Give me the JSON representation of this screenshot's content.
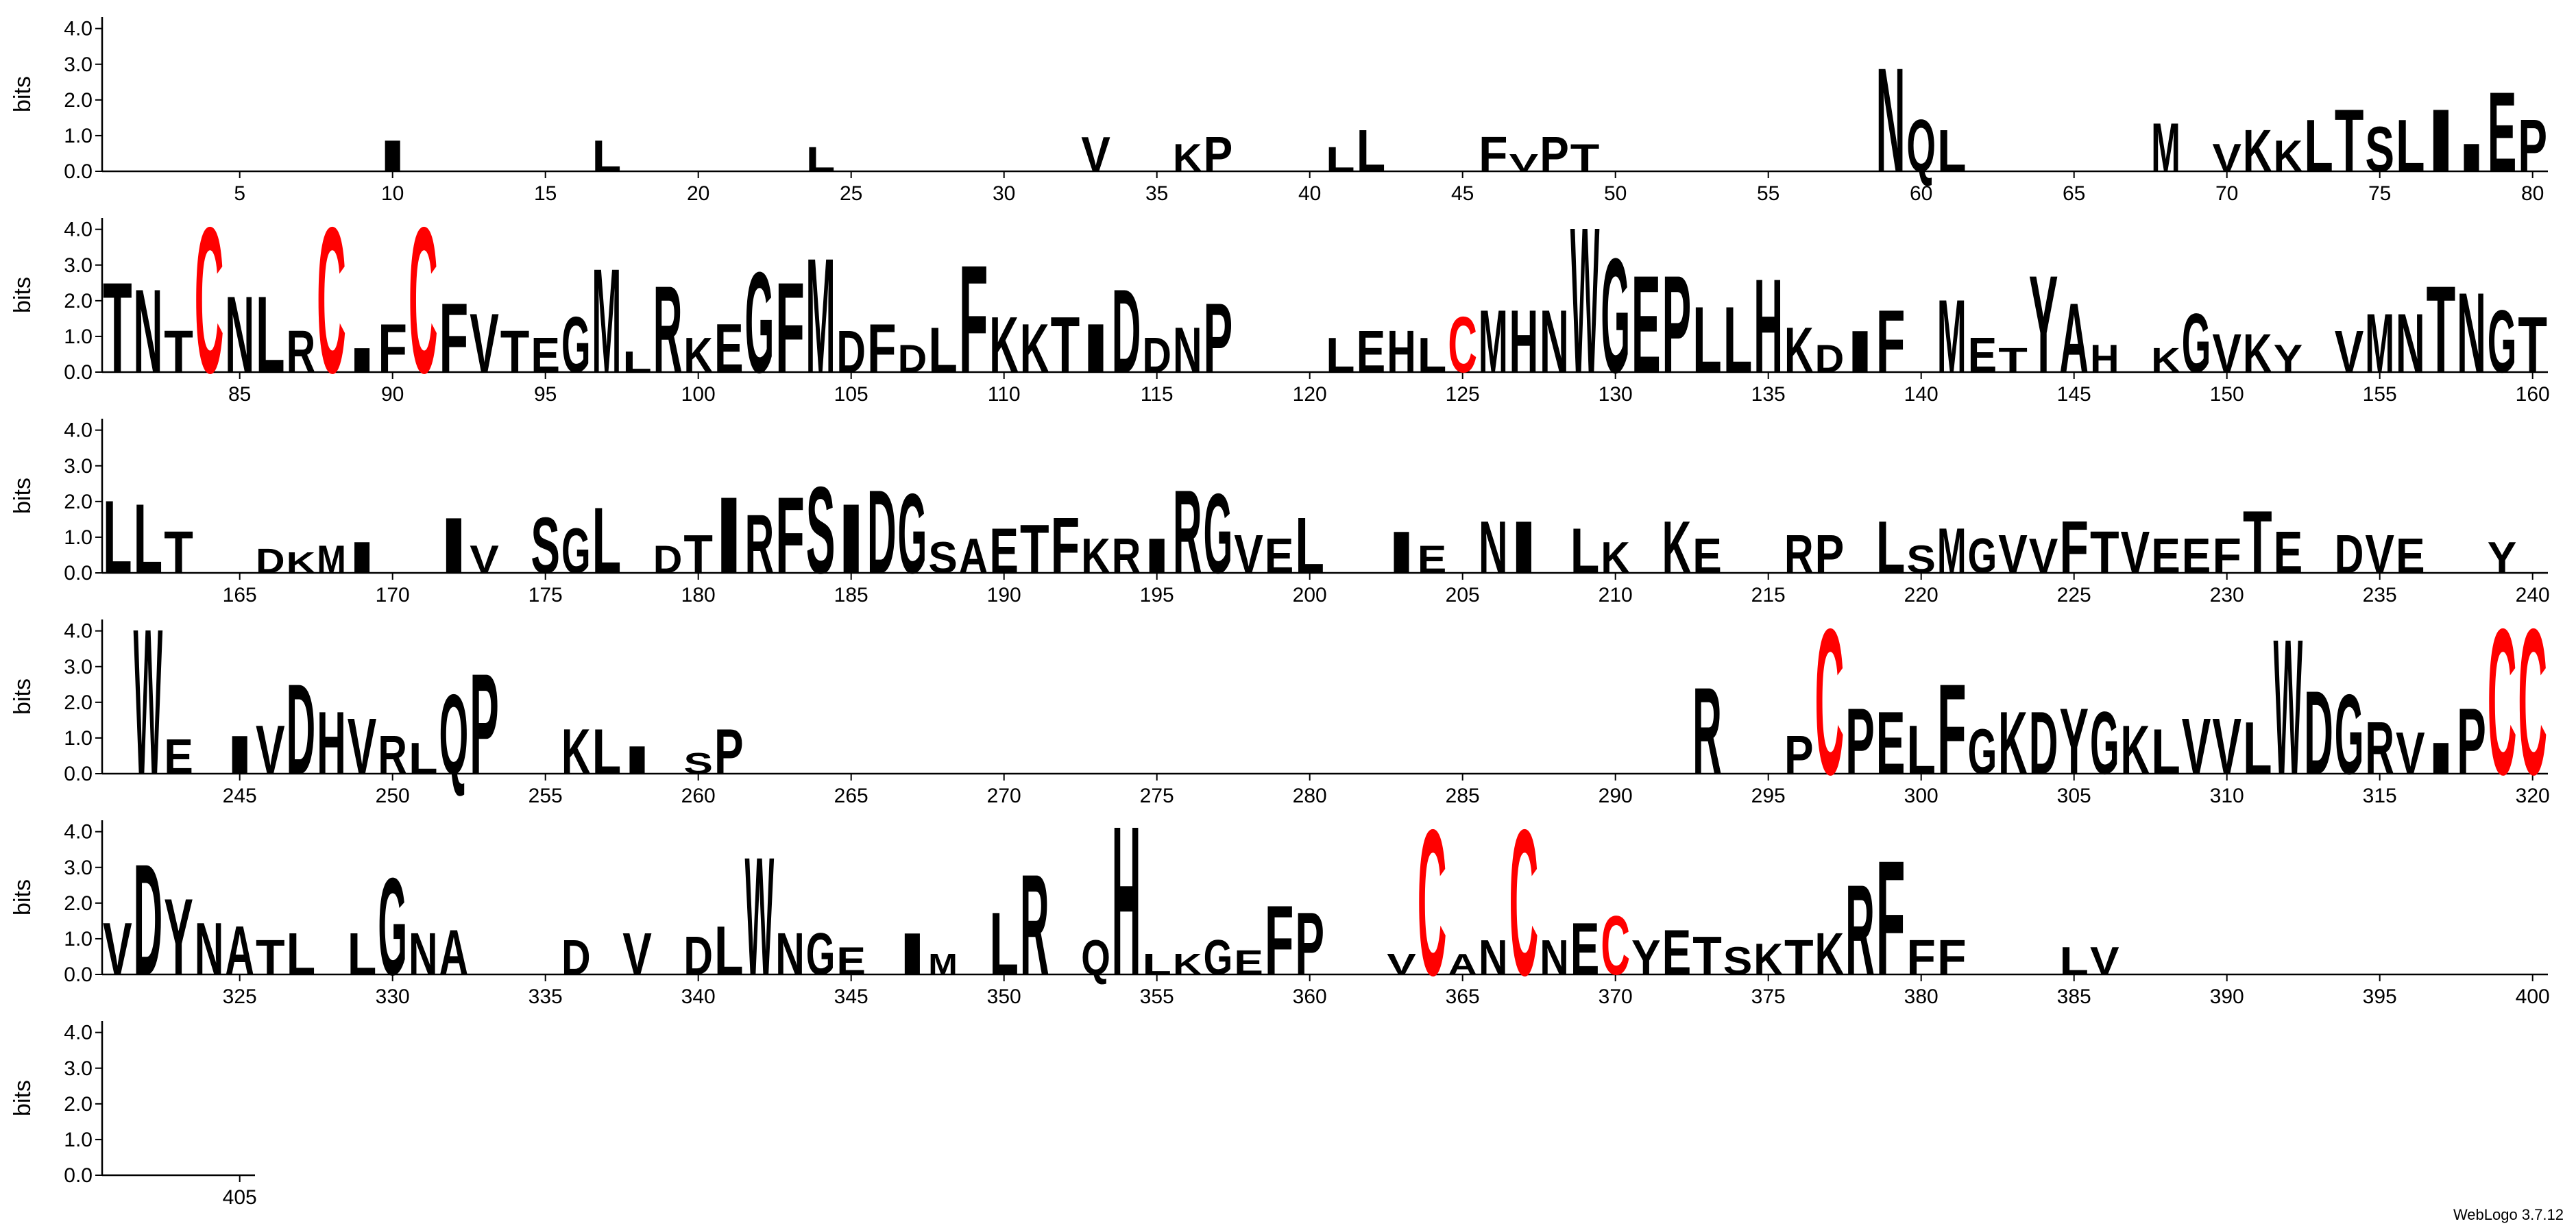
{
  "footer": "WebLogo 3.7.12",
  "chart_data": [
    {
      "type": "logo",
      "ylabel": "bits",
      "xlim": [
        0.5,
        80.5
      ],
      "xticks": [
        5,
        10,
        15,
        20,
        25,
        30,
        35,
        40,
        45,
        50,
        55,
        60,
        65,
        70,
        75,
        80
      ],
      "ylim": [
        0,
        4.32
      ],
      "yticks": [
        {
          "value": 0,
          "label": "0.0"
        },
        {
          "value": 1,
          "label": "1.0"
        },
        {
          "value": 2,
          "label": "2.0"
        },
        {
          "value": 3,
          "label": "3.0"
        },
        {
          "value": 4,
          "label": "4.0"
        }
      ],
      "color": "#000000",
      "highlight_letter": "C",
      "highlight_color": "#ff0000",
      "x": [
        10,
        17,
        24,
        33,
        36,
        37,
        41,
        42,
        46,
        47,
        48,
        49,
        59,
        60,
        61,
        68,
        70,
        71,
        72,
        73,
        74,
        75,
        76,
        77,
        78,
        79,
        80
      ],
      "letters": [
        "I",
        "L",
        "L",
        "V",
        "K",
        "P",
        "L",
        "L",
        "F",
        "V",
        "P",
        "T",
        "N",
        "Q",
        "L",
        "M",
        "V",
        "K",
        "K",
        "L",
        "T",
        "S",
        "L",
        "I",
        "I",
        "E",
        "P"
      ],
      "values": [
        0.9,
        0.9,
        0.7,
        1.0,
        0.8,
        1.0,
        0.7,
        1.2,
        1.0,
        0.5,
        1.0,
        0.8,
        3.0,
        1.5,
        1.2,
        1.4,
        0.8,
        1.2,
        0.9,
        1.5,
        1.8,
        1.3,
        1.5,
        1.8,
        0.8,
        2.3,
        1.5
      ]
    },
    {
      "type": "logo",
      "ylabel": "bits",
      "xlim": [
        80.5,
        160.5
      ],
      "xticks": [
        85,
        90,
        95,
        100,
        105,
        110,
        115,
        120,
        125,
        130,
        135,
        140,
        145,
        150,
        155,
        160
      ],
      "ylim": [
        0,
        4.32
      ],
      "yticks": [
        {
          "value": 0,
          "label": "0.0"
        },
        {
          "value": 1,
          "label": "1.0"
        },
        {
          "value": 2,
          "label": "2.0"
        },
        {
          "value": 3,
          "label": "3.0"
        },
        {
          "value": 4,
          "label": "4.0"
        }
      ],
      "color": "#000000",
      "highlight_letter": "C",
      "highlight_color": "#ff0000",
      "x": [
        81,
        82,
        83,
        84,
        85,
        86,
        87,
        88,
        89,
        90,
        91,
        92,
        93,
        94,
        95,
        96,
        97,
        98,
        99,
        100,
        101,
        102,
        103,
        104,
        105,
        106,
        107,
        108,
        109,
        110,
        111,
        112,
        113,
        114,
        115,
        116,
        117,
        121,
        122,
        123,
        124,
        125,
        126,
        127,
        128,
        129,
        130,
        131,
        132,
        133,
        134,
        135,
        136,
        137,
        138,
        139,
        141,
        142,
        143,
        144,
        145,
        146,
        148,
        149,
        150,
        151,
        152,
        154,
        155,
        156,
        157,
        158,
        159,
        160
      ],
      "letters": [
        "T",
        "N",
        "T",
        "C",
        "N",
        "L",
        "R",
        "C",
        "I",
        "F",
        "C",
        "F",
        "V",
        "T",
        "E",
        "G",
        "M",
        "L",
        "R",
        "K",
        "E",
        "G",
        "F",
        "M",
        "D",
        "F",
        "D",
        "L",
        "F",
        "K",
        "K",
        "T",
        "I",
        "D",
        "D",
        "N",
        "P",
        "L",
        "E",
        "H",
        "L",
        "C",
        "M",
        "H",
        "N",
        "W",
        "G",
        "E",
        "P",
        "L",
        "L",
        "H",
        "K",
        "D",
        "I",
        "F",
        "M",
        "E",
        "T",
        "Y",
        "A",
        "H",
        "K",
        "G",
        "V",
        "K",
        "Y",
        "V",
        "M",
        "N",
        "T",
        "N",
        "G",
        "T"
      ],
      "values": [
        2.6,
        2.4,
        1.2,
        4.2,
        2.2,
        2.2,
        1.2,
        4.2,
        0.7,
        1.4,
        4.2,
        2.0,
        1.7,
        1.2,
        1.0,
        1.6,
        3.0,
        0.6,
        2.5,
        1.0,
        1.4,
        2.9,
        2.6,
        3.3,
        1.2,
        1.4,
        0.8,
        1.3,
        3.1,
        1.6,
        1.4,
        1.6,
        1.4,
        2.4,
        1.0,
        1.3,
        2.0,
        1.0,
        1.2,
        1.2,
        1.0,
        1.6,
        1.8,
        1.8,
        1.8,
        4.2,
        3.3,
        2.8,
        2.8,
        1.9,
        1.9,
        2.7,
        1.3,
        0.8,
        1.2,
        1.8,
        2.1,
        1.0,
        0.7,
        2.8,
        2.0,
        0.8,
        0.7,
        1.7,
        1.1,
        1.1,
        0.8,
        1.2,
        1.7,
        1.7,
        2.5,
        2.3,
        1.8,
        1.6
      ]
    },
    {
      "type": "logo",
      "ylabel": "bits",
      "xlim": [
        160.5,
        240.5
      ],
      "xticks": [
        165,
        170,
        175,
        180,
        185,
        190,
        195,
        200,
        205,
        210,
        215,
        220,
        225,
        230,
        235,
        240
      ],
      "ylim": [
        0,
        4.32
      ],
      "yticks": [
        {
          "value": 0,
          "label": "0.0"
        },
        {
          "value": 1,
          "label": "1.0"
        },
        {
          "value": 2,
          "label": "2.0"
        },
        {
          "value": 3,
          "label": "3.0"
        },
        {
          "value": 4,
          "label": "4.0"
        }
      ],
      "color": "#000000",
      "highlight_letter": "C",
      "highlight_color": "#ff0000",
      "x": [
        161,
        162,
        163,
        166,
        167,
        168,
        169,
        172,
        173,
        175,
        176,
        177,
        179,
        180,
        181,
        182,
        183,
        184,
        185,
        186,
        187,
        188,
        189,
        190,
        191,
        192,
        193,
        194,
        195,
        196,
        197,
        198,
        199,
        200,
        203,
        204,
        206,
        207,
        209,
        210,
        212,
        213,
        216,
        217,
        219,
        220,
        221,
        222,
        223,
        224,
        225,
        226,
        227,
        228,
        229,
        230,
        231,
        232,
        234,
        235,
        236,
        239
      ],
      "letters": [
        "L",
        "L",
        "T",
        "D",
        "K",
        "M",
        "I",
        "I",
        "V",
        "S",
        "G",
        "L",
        "D",
        "T",
        "I",
        "R",
        "F",
        "S",
        "I",
        "D",
        "G",
        "S",
        "A",
        "E",
        "T",
        "F",
        "K",
        "R",
        "I",
        "R",
        "G",
        "V",
        "E",
        "L",
        "I",
        "E",
        "N",
        "I",
        "L",
        "K",
        "K",
        "E",
        "R",
        "P",
        "L",
        "S",
        "M",
        "G",
        "V",
        "V",
        "F",
        "T",
        "V",
        "E",
        "E",
        "F",
        "T",
        "E",
        "D",
        "V",
        "E",
        "Y"
      ],
      "values": [
        2.1,
        2.0,
        1.2,
        0.7,
        0.6,
        0.8,
        0.9,
        1.6,
        0.8,
        1.6,
        1.3,
        1.9,
        0.8,
        1.1,
        2.2,
        1.7,
        2.2,
        2.5,
        2.0,
        2.4,
        2.3,
        0.9,
        1.0,
        1.3,
        1.4,
        1.6,
        1.0,
        1.0,
        1.0,
        2.4,
        2.3,
        1.1,
        1.0,
        1.6,
        1.2,
        0.8,
        1.5,
        1.5,
        1.3,
        0.9,
        1.5,
        1.0,
        1.1,
        1.1,
        1.5,
        0.8,
        1.3,
        1.0,
        1.1,
        1.0,
        1.5,
        1.2,
        1.2,
        1.0,
        1.0,
        1.0,
        1.8,
        1.2,
        1.1,
        1.1,
        1.0,
        0.9
      ]
    },
    {
      "type": "logo",
      "ylabel": "bits",
      "xlim": [
        240.5,
        320.5
      ],
      "xticks": [
        245,
        250,
        255,
        260,
        265,
        270,
        275,
        280,
        285,
        290,
        295,
        300,
        305,
        310,
        315,
        320
      ],
      "ylim": [
        0,
        4.32
      ],
      "yticks": [
        {
          "value": 0,
          "label": "0.0"
        },
        {
          "value": 1,
          "label": "1.0"
        },
        {
          "value": 2,
          "label": "2.0"
        },
        {
          "value": 3,
          "label": "3.0"
        },
        {
          "value": 4,
          "label": "4.0"
        }
      ],
      "color": "#000000",
      "highlight_letter": "C",
      "highlight_color": "#ff0000",
      "x": [
        242,
        243,
        245,
        246,
        247,
        248,
        249,
        250,
        251,
        252,
        253,
        256,
        257,
        258,
        260,
        261,
        293,
        296,
        297,
        298,
        299,
        300,
        301,
        302,
        303,
        304,
        305,
        306,
        307,
        308,
        309,
        310,
        311,
        312,
        313,
        314,
        315,
        316,
        317,
        318,
        319,
        320
      ],
      "letters": [
        "W",
        "E",
        "I",
        "V",
        "D",
        "H",
        "V",
        "R",
        "L",
        "Q",
        "P",
        "K",
        "L",
        "I",
        "S",
        "P",
        "R",
        "P",
        "C",
        "P",
        "E",
        "L",
        "F",
        "G",
        "K",
        "D",
        "Y",
        "G",
        "K",
        "L",
        "V",
        "V",
        "L",
        "W",
        "D",
        "G",
        "R",
        "V",
        "I",
        "P",
        "C",
        "C"
      ],
      "values": [
        4.2,
        1.0,
        1.1,
        1.4,
        2.6,
        1.8,
        1.6,
        1.1,
        0.9,
        2.3,
        2.9,
        1.3,
        1.3,
        0.8,
        0.6,
        1.3,
        2.5,
        1.1,
        4.2,
        1.9,
        1.8,
        1.4,
        2.6,
        1.3,
        1.8,
        1.8,
        1.9,
        1.8,
        1.4,
        1.3,
        1.6,
        1.6,
        1.5,
        3.9,
        2.4,
        2.3,
        1.5,
        1.2,
        0.9,
        1.9,
        4.2,
        4.2
      ]
    },
    {
      "type": "logo",
      "ylabel": "bits",
      "xlim": [
        320.5,
        400.5
      ],
      "xticks": [
        325,
        330,
        335,
        340,
        345,
        350,
        355,
        360,
        365,
        370,
        375,
        380,
        385,
        390,
        395,
        400
      ],
      "ylim": [
        0,
        4.32
      ],
      "yticks": [
        {
          "value": 0,
          "label": "0.0"
        },
        {
          "value": 1,
          "label": "1.0"
        },
        {
          "value": 2,
          "label": "2.0"
        },
        {
          "value": 3,
          "label": "3.0"
        },
        {
          "value": 4,
          "label": "4.0"
        }
      ],
      "color": "#000000",
      "highlight_letter": "C",
      "highlight_color": "#ff0000",
      "x": [
        321,
        322,
        323,
        324,
        325,
        326,
        327,
        329,
        330,
        331,
        332,
        336,
        338,
        340,
        341,
        342,
        343,
        344,
        345,
        347,
        348,
        350,
        351,
        353,
        354,
        355,
        356,
        357,
        358,
        359,
        360,
        363,
        364,
        365,
        366,
        367,
        368,
        369,
        370,
        371,
        372,
        373,
        374,
        375,
        376,
        377,
        378,
        379,
        380,
        381,
        385,
        386
      ],
      "letters": [
        "V",
        "D",
        "Y",
        "N",
        "A",
        "T",
        "L",
        "L",
        "G",
        "N",
        "A",
        "D",
        "V",
        "D",
        "L",
        "W",
        "N",
        "G",
        "E",
        "I",
        "M",
        "L",
        "R",
        "Q",
        "H",
        "L",
        "K",
        "G",
        "E",
        "F",
        "P",
        "V",
        "C",
        "A",
        "N",
        "C",
        "N",
        "E",
        "C",
        "Y",
        "E",
        "T",
        "S",
        "K",
        "T",
        "K",
        "R",
        "F",
        "F",
        "F",
        "L",
        "V"
      ],
      "values": [
        1.5,
        3.2,
        2.2,
        1.5,
        1.4,
        1.0,
        1.2,
        1.2,
        2.8,
        1.2,
        1.3,
        1.0,
        1.2,
        1.1,
        1.4,
        3.4,
        1.2,
        1.2,
        0.8,
        1.2,
        0.6,
        1.8,
        2.9,
        1.0,
        4.3,
        0.6,
        0.6,
        1.0,
        0.7,
        2.0,
        1.8,
        0.6,
        4.2,
        0.6,
        1.0,
        4.2,
        1.0,
        1.5,
        1.7,
        1.0,
        1.3,
        1.1,
        0.8,
        0.9,
        1.0,
        1.2,
        2.6,
        3.3,
        1.0,
        1.0,
        0.8,
        0.8
      ]
    },
    {
      "type": "logo",
      "ylabel": "bits",
      "xlim": [
        400.5,
        405.5
      ],
      "xticks": [
        405
      ],
      "ylim": [
        0,
        4.32
      ],
      "yticks": [
        {
          "value": 0,
          "label": "0.0"
        },
        {
          "value": 1,
          "label": "1.0"
        },
        {
          "value": 2,
          "label": "2.0"
        },
        {
          "value": 3,
          "label": "3.0"
        },
        {
          "value": 4,
          "label": "4.0"
        }
      ],
      "color": "#000000",
      "highlight_letter": "C",
      "highlight_color": "#ff0000",
      "x": [],
      "letters": [],
      "values": []
    }
  ]
}
